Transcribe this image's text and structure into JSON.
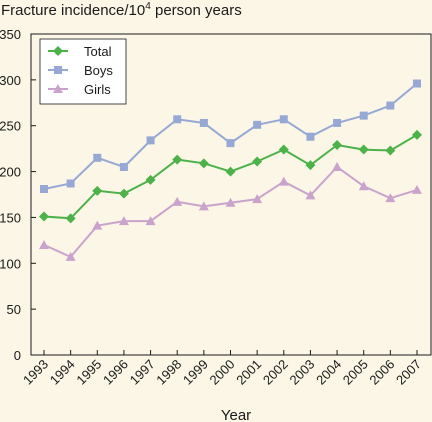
{
  "chart_data": {
    "type": "line",
    "title": "Fracture incidence/10",
    "title_superscript": "4",
    "title_suffix": " person years",
    "xlabel": "Year",
    "ylabel": "",
    "x": [
      "1993",
      "1994",
      "1995",
      "1996",
      "1997",
      "1998",
      "1999",
      "2000",
      "2001",
      "2002",
      "2003",
      "2004",
      "2005",
      "2006",
      "2007"
    ],
    "ylim": [
      0,
      350
    ],
    "yticks": [
      0,
      50,
      100,
      150,
      200,
      250,
      300,
      350
    ],
    "grid": false,
    "legend_position": "top-left",
    "series": [
      {
        "name": "Total",
        "color": "#4db24a",
        "marker": "diamond",
        "values": [
          151,
          149,
          179,
          176,
          191,
          213,
          209,
          200,
          211,
          224,
          207,
          229,
          224,
          223,
          240
        ]
      },
      {
        "name": "Boys",
        "color": "#97a8d4",
        "marker": "square",
        "values": [
          181,
          187,
          215,
          205,
          234,
          257,
          253,
          231,
          251,
          257,
          238,
          253,
          261,
          272,
          296
        ]
      },
      {
        "name": "Girls",
        "color": "#c9a3cc",
        "marker": "triangle",
        "values": [
          120,
          107,
          141,
          146,
          146,
          167,
          162,
          166,
          170,
          189,
          174,
          205,
          184,
          171,
          180
        ]
      }
    ]
  }
}
